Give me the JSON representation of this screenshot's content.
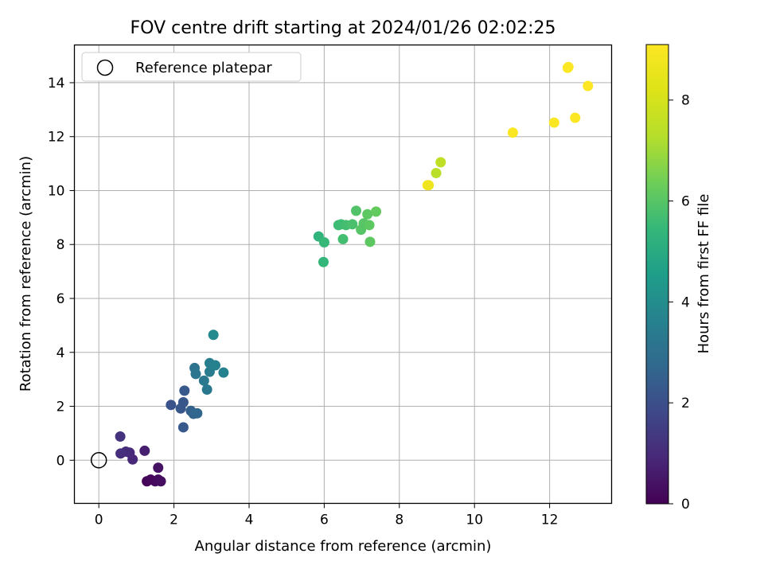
{
  "chart_data": {
    "type": "scatter",
    "title": "FOV centre drift starting at 2024/01/26 02:02:25",
    "xlabel": "Angular distance from reference (arcmin)",
    "ylabel": "Rotation from reference (arcmin)",
    "xlim": [
      -0.65,
      13.65
    ],
    "ylim": [
      -1.6,
      15.4
    ],
    "xticks": [
      0,
      2,
      4,
      6,
      8,
      10,
      12
    ],
    "yticks": [
      0,
      2,
      4,
      6,
      8,
      10,
      12,
      14
    ],
    "grid": true,
    "legend": {
      "placement": "upper-left",
      "entries": [
        "Reference platepar"
      ]
    },
    "reference": {
      "x": 0,
      "y": 0
    },
    "colorbar": {
      "label": "Hours from first FF file",
      "range": [
        0,
        9.1
      ],
      "ticks": [
        0,
        2,
        4,
        6,
        8
      ],
      "colormap": "viridis"
    },
    "points": [
      {
        "x": 1.28,
        "y": -0.78,
        "c": 0.05
      },
      {
        "x": 1.38,
        "y": -0.72,
        "c": 0.15
      },
      {
        "x": 1.5,
        "y": -0.78,
        "c": 0.2
      },
      {
        "x": 1.58,
        "y": -0.72,
        "c": 0.25
      },
      {
        "x": 1.65,
        "y": -0.78,
        "c": 0.3
      },
      {
        "x": 1.58,
        "y": -0.28,
        "c": 0.4
      },
      {
        "x": 1.22,
        "y": 0.35,
        "c": 0.7
      },
      {
        "x": 0.9,
        "y": 0.03,
        "c": 0.9
      },
      {
        "x": 0.82,
        "y": 0.28,
        "c": 1.0
      },
      {
        "x": 0.72,
        "y": 0.32,
        "c": 1.05
      },
      {
        "x": 0.58,
        "y": 0.25,
        "c": 1.1
      },
      {
        "x": 0.57,
        "y": 0.88,
        "c": 1.2
      },
      {
        "x": 1.92,
        "y": 2.05,
        "c": 2.1
      },
      {
        "x": 2.18,
        "y": 1.92,
        "c": 2.2
      },
      {
        "x": 2.25,
        "y": 2.15,
        "c": 2.2
      },
      {
        "x": 2.25,
        "y": 1.22,
        "c": 2.3
      },
      {
        "x": 2.28,
        "y": 2.58,
        "c": 2.3
      },
      {
        "x": 2.45,
        "y": 1.83,
        "c": 2.5
      },
      {
        "x": 2.52,
        "y": 1.72,
        "c": 2.6
      },
      {
        "x": 2.62,
        "y": 1.74,
        "c": 2.7
      },
      {
        "x": 2.55,
        "y": 3.42,
        "c": 3.1
      },
      {
        "x": 2.58,
        "y": 3.2,
        "c": 3.2
      },
      {
        "x": 2.8,
        "y": 2.95,
        "c": 3.3
      },
      {
        "x": 2.88,
        "y": 2.62,
        "c": 3.3
      },
      {
        "x": 2.95,
        "y": 3.28,
        "c": 3.4
      },
      {
        "x": 2.95,
        "y": 3.6,
        "c": 3.5
      },
      {
        "x": 3.1,
        "y": 3.52,
        "c": 3.6
      },
      {
        "x": 3.32,
        "y": 3.25,
        "c": 3.6
      },
      {
        "x": 3.05,
        "y": 4.65,
        "c": 3.9
      },
      {
        "x": 5.85,
        "y": 8.3,
        "c": 5.3
      },
      {
        "x": 5.98,
        "y": 7.35,
        "c": 5.4
      },
      {
        "x": 6.0,
        "y": 8.08,
        "c": 5.5
      },
      {
        "x": 6.38,
        "y": 8.72,
        "c": 5.6
      },
      {
        "x": 6.45,
        "y": 8.75,
        "c": 5.6
      },
      {
        "x": 6.5,
        "y": 8.2,
        "c": 5.7
      },
      {
        "x": 6.58,
        "y": 8.72,
        "c": 5.7
      },
      {
        "x": 6.75,
        "y": 8.75,
        "c": 5.8
      },
      {
        "x": 6.85,
        "y": 9.25,
        "c": 5.9
      },
      {
        "x": 6.98,
        "y": 8.55,
        "c": 6.0
      },
      {
        "x": 7.05,
        "y": 8.78,
        "c": 6.0
      },
      {
        "x": 7.15,
        "y": 9.12,
        "c": 6.1
      },
      {
        "x": 7.2,
        "y": 8.72,
        "c": 6.1
      },
      {
        "x": 7.22,
        "y": 8.1,
        "c": 6.1
      },
      {
        "x": 7.38,
        "y": 9.22,
        "c": 6.2
      },
      {
        "x": 8.75,
        "y": 10.2,
        "c": 8.9
      },
      {
        "x": 8.78,
        "y": 10.2,
        "c": 8.7
      },
      {
        "x": 8.98,
        "y": 10.65,
        "c": 7.4
      },
      {
        "x": 9.1,
        "y": 11.05,
        "c": 7.5
      },
      {
        "x": 11.02,
        "y": 12.15,
        "c": 9.0
      },
      {
        "x": 12.12,
        "y": 12.52,
        "c": 9.0
      },
      {
        "x": 12.48,
        "y": 14.55,
        "c": 9.05
      },
      {
        "x": 12.5,
        "y": 14.58,
        "c": 9.05
      },
      {
        "x": 12.68,
        "y": 12.7,
        "c": 9.05
      },
      {
        "x": 13.02,
        "y": 13.88,
        "c": 9.1
      }
    ]
  }
}
